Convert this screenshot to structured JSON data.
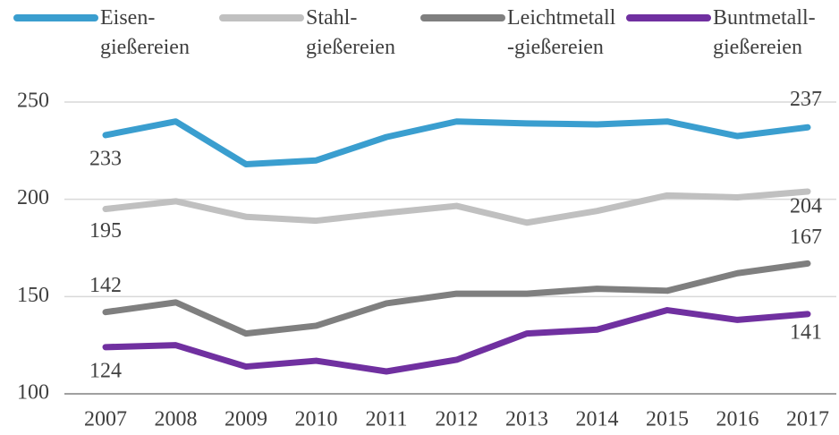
{
  "chart_data": {
    "type": "line",
    "categories": [
      "2007",
      "2008",
      "2009",
      "2010",
      "2011",
      "2012",
      "2013",
      "2014",
      "2015",
      "2016",
      "2017"
    ],
    "series": [
      {
        "name": "Eisen-\ngießereien",
        "color": "#3a9ecf",
        "values": [
          233,
          240,
          218,
          220,
          232,
          240,
          239,
          238.5,
          240,
          232.5,
          237
        ]
      },
      {
        "name": "Stahl-\ngießereien",
        "color": "#c0c0c0",
        "values": [
          195,
          199,
          191,
          189,
          193,
          196.6,
          188,
          194,
          202,
          201,
          204
        ]
      },
      {
        "name": "Leichtmetall\n-gießereien",
        "color": "#7f7f7f",
        "values": [
          142,
          147,
          131,
          135,
          146.5,
          151.5,
          151.5,
          154,
          153,
          162,
          167
        ]
      },
      {
        "name": "Buntmetall-\ngießereien",
        "color": "#7030a0",
        "values": [
          124,
          125,
          114,
          117,
          111.5,
          117.5,
          131,
          133,
          143,
          138,
          141
        ]
      }
    ],
    "ylim": [
      100,
      250
    ],
    "yticks": [
      100,
      150,
      200,
      250
    ],
    "grid": true,
    "legend": "top"
  }
}
